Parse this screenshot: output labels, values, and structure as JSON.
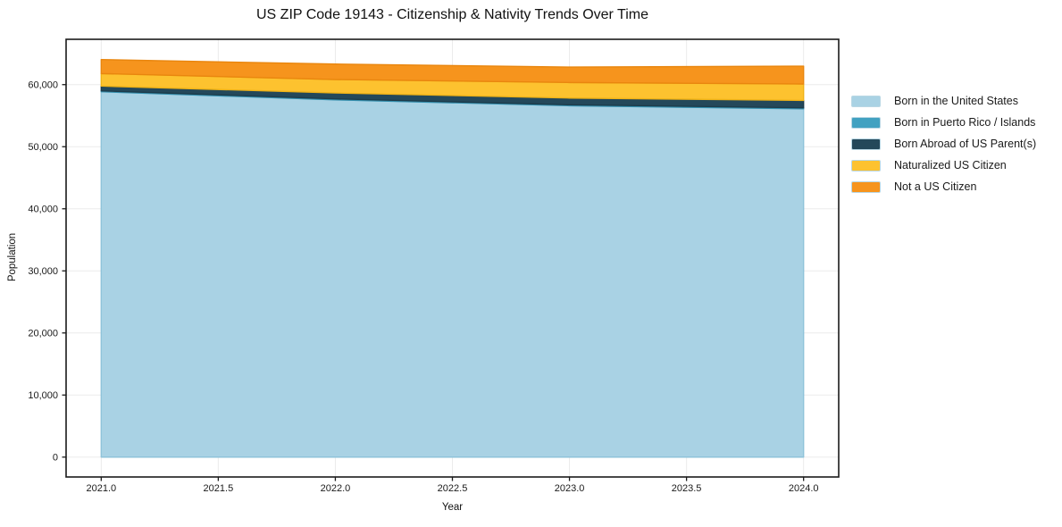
{
  "chart_data": {
    "type": "area",
    "stacked": true,
    "title": "US ZIP Code 19143 - Citizenship & Nativity Trends Over Time",
    "xlabel": "Year",
    "ylabel": "Population",
    "x": [
      2021,
      2022,
      2023,
      2024
    ],
    "series": [
      {
        "name": "Born in the United States",
        "fill": "#a9d2e4",
        "edge": "#8fc3da",
        "values": [
          58850,
          57550,
          56600,
          56100
        ]
      },
      {
        "name": "Born in Puerto Rico / Islands",
        "fill": "#41a1c1",
        "edge": "#3590af",
        "values": [
          150,
          150,
          150,
          160
        ]
      },
      {
        "name": "Born Abroad of US Parent(s)",
        "fill": "#24485a",
        "edge": "#1d3c4b",
        "values": [
          770,
          960,
          1090,
          1200
        ]
      },
      {
        "name": "Naturalized US Citizen",
        "fill": "#fdc22f",
        "edge": "#f0b317",
        "values": [
          2010,
          2160,
          2500,
          2640
        ]
      },
      {
        "name": "Not a US Citizen",
        "fill": "#f6941d",
        "edge": "#e9860e",
        "values": [
          2250,
          2490,
          2490,
          2880
        ]
      }
    ],
    "xlim": [
      2020.85,
      2024.15
    ],
    "ylim": [
      -3200,
      67300
    ],
    "x_ticks": {
      "values": [
        2021.0,
        2021.5,
        2022.0,
        2022.5,
        2023.0,
        2023.5,
        2024.0
      ],
      "labels": [
        "2021.0",
        "2021.5",
        "2022.0",
        "2022.5",
        "2023.0",
        "2023.5",
        "2024.0"
      ]
    },
    "y_ticks": {
      "values": [
        0,
        10000,
        20000,
        30000,
        40000,
        50000,
        60000
      ],
      "labels": [
        "0",
        "10,000",
        "20,000",
        "30,000",
        "40,000",
        "50,000",
        "60,000"
      ]
    },
    "grid": true,
    "grid_color": "#ebebeb",
    "spine_color": "#1a1a1a",
    "tick_label_color": "#1a1a1a",
    "legend_position": "right"
  }
}
